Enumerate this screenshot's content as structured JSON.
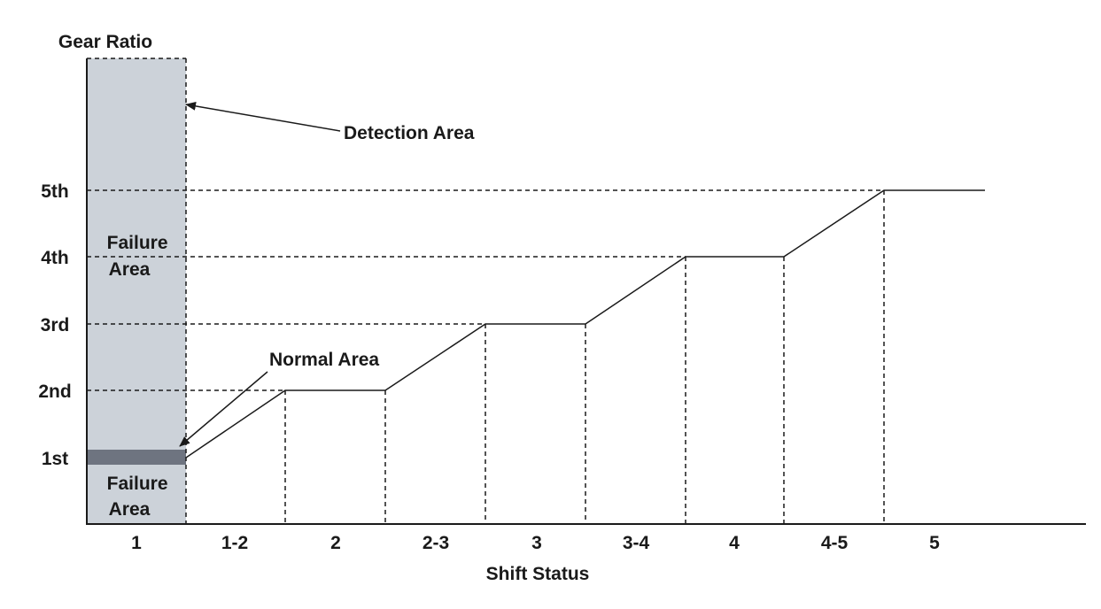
{
  "chart_data": {
    "type": "line",
    "title": "",
    "ylabel": "Gear Ratio",
    "xlabel": "Shift Status",
    "y_categories": [
      "1st",
      "2nd",
      "3rd",
      "4th",
      "5th"
    ],
    "x_categories": [
      "1",
      "1-2",
      "2",
      "2-3",
      "3",
      "3-4",
      "4",
      "4-5",
      "5"
    ],
    "series": [
      {
        "points": [
          {
            "x": "1-2",
            "y": "1st"
          },
          {
            "x": "2",
            "y": "2nd"
          },
          {
            "x": "2-3",
            "y": "2nd"
          },
          {
            "x": "3",
            "y": "3rd"
          },
          {
            "x": "3-4",
            "y": "3rd"
          },
          {
            "x": "4",
            "y": "4th"
          },
          {
            "x": "4-5",
            "y": "4th"
          },
          {
            "x": "5",
            "y": "5th"
          },
          {
            "x": "end",
            "y": "5th"
          }
        ]
      }
    ],
    "annotations": {
      "detection_area": "Detection Area",
      "failure_area_upper": "Failure\nArea",
      "failure_area_lower": "Failure\nArea",
      "normal_area": "Normal Area"
    },
    "colors": {
      "detection_fill": "#ccd2d9",
      "normal_band": "#6e7480",
      "line": "#1a1a1a"
    }
  }
}
